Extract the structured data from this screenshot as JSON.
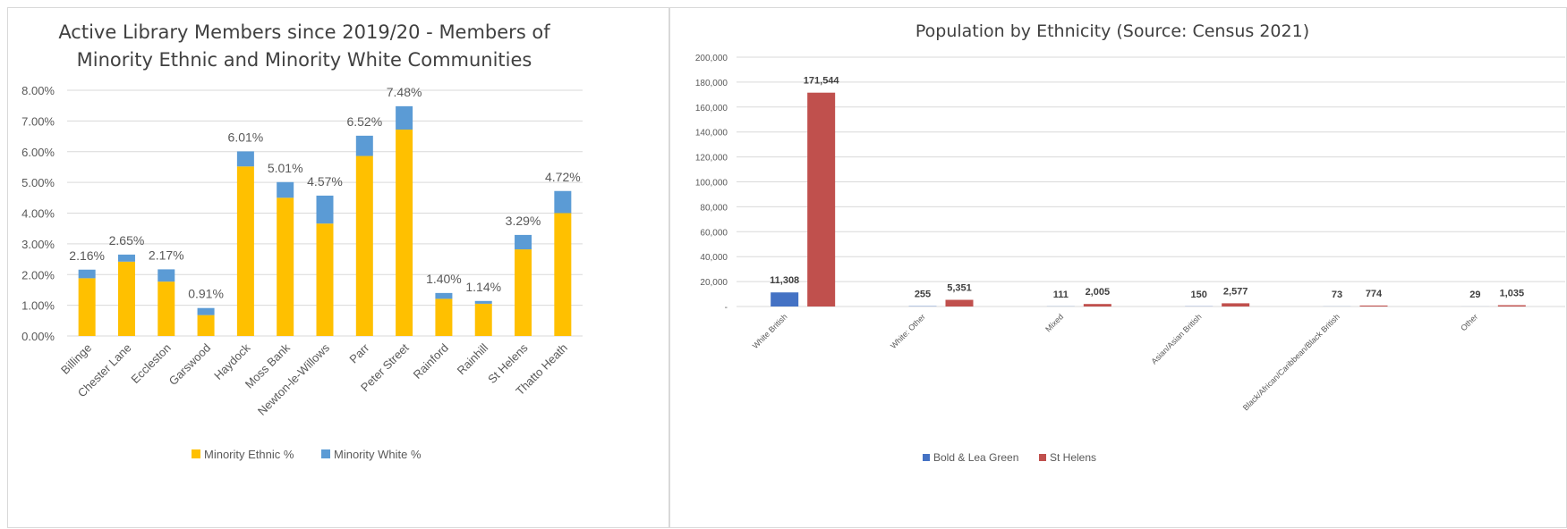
{
  "chart_data": [
    {
      "type": "bar",
      "stacked": true,
      "title_lines": [
        "Active Library Members since 2019/20 - Members of",
        "Minority Ethnic and Minority White Communities"
      ],
      "categories": [
        "Billinge",
        "Chester Lane",
        "Eccleston",
        "Garswood",
        "Haydock",
        "Moss Bank",
        "Newton-le-Willows",
        "Parr",
        "Peter Street",
        "Rainford",
        "Rainhill",
        "St Helens",
        "Thatto Heath"
      ],
      "series": [
        {
          "name": "Minority Ethnic %",
          "color": "#FFC000",
          "values": [
            1.88,
            2.42,
            1.77,
            0.68,
            5.52,
            4.5,
            3.66,
            5.86,
            6.72,
            1.21,
            1.05,
            2.82,
            4.0
          ]
        },
        {
          "name": "Minority White %",
          "color": "#5B9BD5",
          "values": [
            0.28,
            0.23,
            0.4,
            0.23,
            0.49,
            0.51,
            0.91,
            0.66,
            0.76,
            0.19,
            0.09,
            0.47,
            0.72
          ]
        }
      ],
      "total_labels": [
        "2.16%",
        "2.65%",
        "2.17%",
        "0.91%",
        "6.01%",
        "5.01%",
        "4.57%",
        "6.52%",
        "7.48%",
        "1.40%",
        "1.14%",
        "3.29%",
        "4.72%"
      ],
      "y_ticks": [
        "0.00%",
        "1.00%",
        "2.00%",
        "3.00%",
        "4.00%",
        "5.00%",
        "6.00%",
        "7.00%",
        "8.00%"
      ],
      "ylim": [
        0,
        8
      ],
      "grid": true,
      "legend": "bottom"
    },
    {
      "type": "bar",
      "stacked": false,
      "title": "Population by Ethnicity (Source: Census 2021)",
      "categories": [
        "White British",
        "White: Other",
        "Mixed",
        "Asian/Asian British",
        "Black/African/Caribbean/Black British",
        "Other"
      ],
      "series": [
        {
          "name": "Bold & Lea Green",
          "color": "#4472C4",
          "values": [
            11308,
            255,
            111,
            150,
            73,
            29
          ],
          "labels": [
            "11,308",
            "255",
            "111",
            "150",
            "73",
            "29"
          ]
        },
        {
          "name": "St Helens",
          "color": "#C0504D",
          "values": [
            171544,
            5351,
            2005,
            2577,
            774,
            1035
          ],
          "labels": [
            "171,544",
            "5,351",
            "2,005",
            "2,577",
            "774",
            "1,035"
          ]
        }
      ],
      "y_ticks": [
        "-",
        "20,000",
        "40,000",
        "60,000",
        "80,000",
        "100,000",
        "120,000",
        "140,000",
        "160,000",
        "180,000",
        "200,000"
      ],
      "ylim": [
        0,
        200000
      ],
      "grid": true,
      "legend": "bottom"
    }
  ]
}
